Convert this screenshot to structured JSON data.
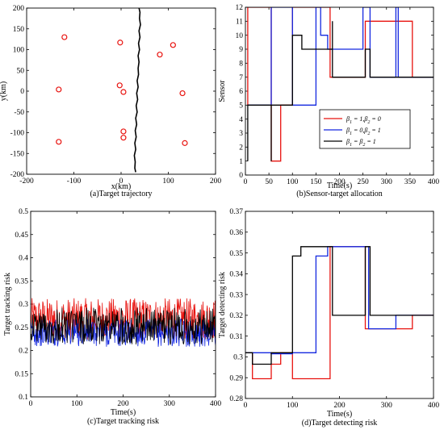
{
  "chart_data": [
    {
      "id": "a",
      "type": "scatter",
      "caption": "(a)Target trajectory",
      "xlabel": "x(km)",
      "ylabel": "y(km)",
      "xlim": [
        -200,
        200
      ],
      "ylim": [
        -200,
        200
      ],
      "xticks": [
        -200,
        -100,
        0,
        100,
        200
      ],
      "yticks": [
        -200,
        -150,
        -100,
        -50,
        0,
        50,
        100,
        150,
        200
      ],
      "points": [
        [
          -120,
          130
        ],
        [
          -2,
          117
        ],
        [
          110,
          111
        ],
        [
          82,
          88
        ],
        [
          -132,
          4
        ],
        [
          -3,
          14
        ],
        [
          5,
          -2
        ],
        [
          130,
          -5
        ],
        [
          5,
          -97
        ],
        [
          5,
          -112
        ],
        [
          -132,
          -122
        ],
        [
          135,
          -125
        ]
      ],
      "marker_color": "#e8130f",
      "trajectory": [
        [
          38,
          200
        ],
        [
          40,
          190
        ],
        [
          39,
          175
        ],
        [
          41,
          160
        ],
        [
          38,
          145
        ],
        [
          40,
          130
        ],
        [
          37,
          115
        ],
        [
          39,
          100
        ],
        [
          36,
          85
        ],
        [
          38,
          70
        ],
        [
          36,
          55
        ],
        [
          37,
          40
        ],
        [
          34,
          25
        ],
        [
          36,
          10
        ],
        [
          33,
          -5
        ],
        [
          35,
          -20
        ],
        [
          32,
          -35
        ],
        [
          34,
          -50
        ],
        [
          31,
          -65
        ],
        [
          33,
          -80
        ],
        [
          30,
          -95
        ],
        [
          32,
          -110
        ],
        [
          29,
          -125
        ],
        [
          31,
          -140
        ],
        [
          28,
          -155
        ],
        [
          30,
          -170
        ],
        [
          29,
          -185
        ],
        [
          31,
          -195
        ]
      ],
      "trajectory_color": "#000000",
      "grid": false
    },
    {
      "id": "b",
      "type": "line",
      "caption": "(b)Sensor-target allocation",
      "xlabel": "Time(s)",
      "ylabel": "Sensor",
      "xlim": [
        0,
        400
      ],
      "ylim": [
        0,
        12
      ],
      "xticks": [
        0,
        50,
        100,
        150,
        200,
        250,
        300,
        350,
        400
      ],
      "yticks": [
        0,
        1,
        2,
        3,
        4,
        5,
        6,
        7,
        8,
        9,
        10,
        11,
        12
      ],
      "legend_position": "center-right",
      "series": [
        {
          "name_parts": [
            "β",
            "1",
            " = 1,β",
            "2",
            " = 0"
          ],
          "color": "#e8130f",
          "steps": [
            [
              5,
              5
            ],
            [
              5,
              12
            ],
            [
              55,
              12
            ],
            [
              55,
              1
            ],
            [
              75,
              1
            ],
            [
              75,
              5
            ],
            [
              100,
              5
            ],
            [
              100,
              12
            ],
            [
              180,
              12
            ],
            [
              180,
              7
            ],
            [
              255,
              7
            ],
            [
              255,
              11
            ],
            [
              355,
              11
            ],
            [
              355,
              7
            ],
            [
              400,
              7
            ]
          ]
        },
        {
          "name_parts": [
            "β",
            "1",
            " = 0,β",
            "2",
            " = 1"
          ],
          "color": "#1428e0",
          "steps": [
            [
              5,
              5
            ],
            [
              55,
              5
            ],
            [
              55,
              12
            ],
            [
              100,
              12
            ],
            [
              100,
              5
            ],
            [
              150,
              5
            ],
            [
              150,
              12
            ],
            [
              160,
              12
            ],
            [
              160,
              10
            ],
            [
              175,
              10
            ],
            [
              175,
              9
            ],
            [
              250,
              9
            ],
            [
              250,
              12
            ],
            [
              265,
              12
            ],
            [
              265,
              7
            ],
            [
              320,
              7
            ],
            [
              320,
              12
            ],
            [
              325,
              12
            ],
            [
              325,
              7
            ],
            [
              400,
              7
            ]
          ]
        },
        {
          "name_parts": [
            "β",
            "1",
            " = β",
            "2",
            " = 1"
          ],
          "color": "#000000",
          "steps": [
            [
              5,
              1
            ],
            [
              5,
              5
            ],
            [
              55,
              5
            ],
            [
              55,
              1
            ],
            [
              55,
              5
            ],
            [
              100,
              5
            ],
            [
              100,
              10
            ],
            [
              120,
              10
            ],
            [
              120,
              9
            ],
            [
              185,
              9
            ],
            [
              185,
              11
            ],
            [
              185,
              7
            ],
            [
              255,
              7
            ],
            [
              255,
              9
            ],
            [
              265,
              9
            ],
            [
              265,
              7
            ],
            [
              400,
              7
            ]
          ]
        }
      ],
      "grid": false
    },
    {
      "id": "c",
      "type": "line",
      "caption": "(c)Target tracking risk",
      "xlabel": "Time(s)",
      "ylabel": "Target tracking risk",
      "xlim": [
        0,
        400
      ],
      "ylim": [
        0.1,
        0.5
      ],
      "xticks": [
        0,
        100,
        200,
        300,
        400
      ],
      "yticks": [
        0.1,
        0.15,
        0.2,
        0.25,
        0.3,
        0.35,
        0.4,
        0.45,
        0.5
      ],
      "series": [
        {
          "color": "#e8130f",
          "mean": 0.268,
          "amp": 0.045,
          "n": 400
        },
        {
          "color": "#1428e0",
          "mean": 0.238,
          "amp": 0.03,
          "n": 400
        },
        {
          "color": "#000000",
          "mean": 0.252,
          "amp": 0.04,
          "n": 400
        }
      ],
      "grid": false
    },
    {
      "id": "d",
      "type": "line",
      "caption": "(d)Target detecting risk",
      "xlabel": "Time(s)",
      "ylabel": "Target detecting risk",
      "xlim": [
        0,
        400
      ],
      "ylim": [
        0.28,
        0.37
      ],
      "xticks": [
        0,
        100,
        200,
        300,
        400
      ],
      "yticks": [
        0.28,
        0.29,
        0.3,
        0.31,
        0.32,
        0.33,
        0.34,
        0.35,
        0.36,
        0.37
      ],
      "series": [
        {
          "color": "#e8130f",
          "steps": [
            [
              0,
              0.302
            ],
            [
              15,
              0.302
            ],
            [
              15,
              0.2895
            ],
            [
              55,
              0.2895
            ],
            [
              55,
              0.2965
            ],
            [
              75,
              0.2965
            ],
            [
              75,
              0.302
            ],
            [
              100,
              0.302
            ],
            [
              100,
              0.2895
            ],
            [
              180,
              0.2895
            ],
            [
              180,
              0.353
            ],
            [
              255,
              0.353
            ],
            [
              255,
              0.3135
            ],
            [
              355,
              0.3135
            ],
            [
              355,
              0.32
            ],
            [
              400,
              0.32
            ]
          ]
        },
        {
          "color": "#1428e0",
          "steps": [
            [
              0,
              0.302
            ],
            [
              55,
              0.302
            ],
            [
              55,
              0.3015
            ],
            [
              100,
              0.3015
            ],
            [
              100,
              0.302
            ],
            [
              150,
              0.302
            ],
            [
              150,
              0.3485
            ],
            [
              175,
              0.3485
            ],
            [
              175,
              0.353
            ],
            [
              262,
              0.353
            ],
            [
              262,
              0.3135
            ],
            [
              320,
              0.3135
            ],
            [
              320,
              0.32
            ],
            [
              400,
              0.32
            ]
          ]
        },
        {
          "color": "#000000",
          "steps": [
            [
              0,
              0.302
            ],
            [
              15,
              0.302
            ],
            [
              15,
              0.2965
            ],
            [
              55,
              0.2965
            ],
            [
              55,
              0.302
            ],
            [
              100,
              0.302
            ],
            [
              100,
              0.3485
            ],
            [
              118,
              0.3485
            ],
            [
              118,
              0.353
            ],
            [
              185,
              0.353
            ],
            [
              185,
              0.32
            ],
            [
              255,
              0.32
            ],
            [
              255,
              0.353
            ],
            [
              265,
              0.353
            ],
            [
              265,
              0.32
            ],
            [
              400,
              0.32
            ]
          ]
        }
      ],
      "grid": false
    }
  ]
}
